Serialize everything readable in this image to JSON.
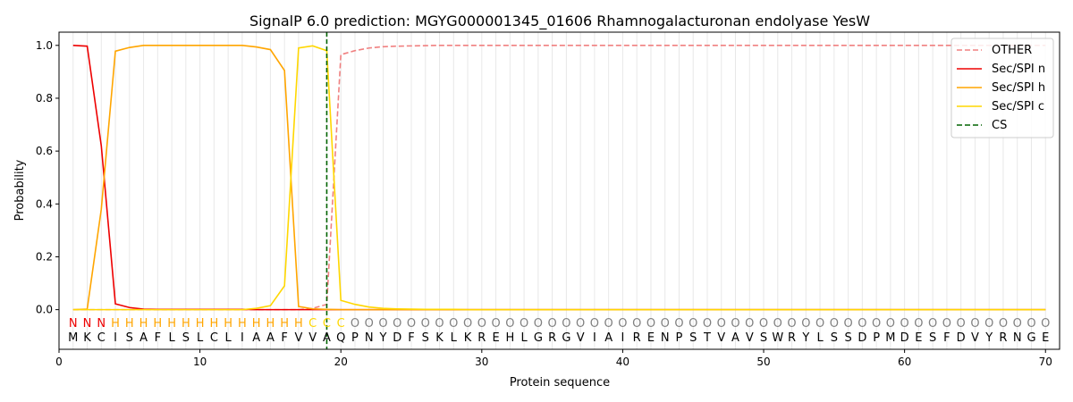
{
  "chart_data": {
    "type": "line",
    "title": "SignalP 6.0 prediction: MGYG000001345_01606 Rhamnogalacturonan endolyase YesW",
    "xlabel": "Protein sequence",
    "ylabel": "Probability",
    "xlim": [
      0,
      71
    ],
    "ylim": [
      -0.15,
      1.05
    ],
    "xticks": [
      0,
      10,
      20,
      30,
      40,
      50,
      60,
      70
    ],
    "yticks": [
      0.0,
      0.2,
      0.4,
      0.6,
      0.8,
      1.0
    ],
    "xtick_labels": [
      "0",
      "10",
      "20",
      "30",
      "40",
      "50",
      "60",
      "70"
    ],
    "ytick_labels": [
      "0.0",
      "0.2",
      "0.4",
      "0.6",
      "0.8",
      "1.0"
    ],
    "grid": "vertical lines at each residue",
    "legend_position": "top-right",
    "sequence": "MKCISAFLSLCLIAAFVVAQPNYDFSKLKREHLGRGVIAIRENPSTVAVSWRYLSSDPMDESFDVYRNGE",
    "labels": "NNNHHHHHHHHHHHHHHCCCOOOOOOOOOOOOOOOOOOOOOOOOOOOOOOOOOOOOOOOOOOOOOOOOOOO",
    "label_colors": {
      "N": "#ee0000",
      "H": "#ffa500",
      "C": "#ffd700",
      "O": "#808080"
    },
    "series": [
      {
        "name": "OTHER",
        "color": "#f08080",
        "style": "dashed",
        "values": [
          0,
          0,
          0,
          0,
          0,
          0,
          0,
          0,
          0,
          0,
          0,
          0,
          0,
          0,
          0,
          0,
          0,
          0.005,
          0.02,
          0.965,
          0.98,
          0.99,
          0.995,
          0.997,
          0.998,
          0.999,
          1,
          1,
          1,
          1,
          1,
          1,
          1,
          1,
          1,
          1,
          1,
          1,
          1,
          1,
          1,
          1,
          1,
          1,
          1,
          1,
          1,
          1,
          1,
          1,
          1,
          1,
          1,
          1,
          1,
          1,
          1,
          1,
          1,
          1,
          1,
          1,
          1,
          1,
          1,
          1,
          1,
          1,
          1,
          1
        ]
      },
      {
        "name": "Sec/SPI n",
        "color": "#ee0000",
        "style": "solid",
        "values": [
          1.0,
          0.997,
          0.62,
          0.022,
          0.008,
          0.002,
          0.001,
          0.001,
          0.001,
          0.001,
          0.001,
          0.001,
          0.001,
          0,
          0,
          0,
          0,
          0,
          0,
          0,
          0,
          0,
          0,
          0,
          0,
          0,
          0,
          0,
          0,
          0,
          0,
          0,
          0,
          0,
          0,
          0,
          0,
          0,
          0,
          0,
          0,
          0,
          0,
          0,
          0,
          0,
          0,
          0,
          0,
          0,
          0,
          0,
          0,
          0,
          0,
          0,
          0,
          0,
          0,
          0,
          0,
          0,
          0,
          0,
          0,
          0,
          0,
          0,
          0,
          0
        ]
      },
      {
        "name": "Sec/SPI h",
        "color": "#ffa500",
        "style": "solid",
        "values": [
          0,
          0.002,
          0.38,
          0.978,
          0.992,
          1.0,
          1.0,
          1.0,
          1.0,
          1.0,
          1.0,
          1.0,
          1.0,
          0.994,
          0.984,
          0.905,
          0.012,
          0.003,
          0.001,
          0,
          0,
          0,
          0,
          0,
          0,
          0,
          0,
          0,
          0,
          0,
          0,
          0,
          0,
          0,
          0,
          0,
          0,
          0,
          0,
          0,
          0,
          0,
          0,
          0,
          0,
          0,
          0,
          0,
          0,
          0,
          0,
          0,
          0,
          0,
          0,
          0,
          0,
          0,
          0,
          0,
          0,
          0,
          0,
          0,
          0,
          0,
          0,
          0,
          0,
          0
        ]
      },
      {
        "name": "Sec/SPI c",
        "color": "#ffd700",
        "style": "solid",
        "values": [
          0,
          0,
          0,
          0,
          0,
          0,
          0,
          0,
          0,
          0,
          0,
          0,
          0,
          0.005,
          0.015,
          0.09,
          0.99,
          0.998,
          0.98,
          0.035,
          0.02,
          0.01,
          0.005,
          0.003,
          0.002,
          0.001,
          0.001,
          0.001,
          0,
          0,
          0,
          0,
          0,
          0,
          0,
          0,
          0,
          0,
          0,
          0,
          0,
          0,
          0,
          0,
          0,
          0,
          0,
          0,
          0,
          0,
          0,
          0,
          0,
          0,
          0,
          0,
          0,
          0,
          0,
          0,
          0,
          0,
          0,
          0,
          0,
          0,
          0,
          0,
          0,
          0
        ]
      },
      {
        "name": "CS",
        "color": "#006400",
        "style": "dashed",
        "x": 19
      }
    ]
  }
}
